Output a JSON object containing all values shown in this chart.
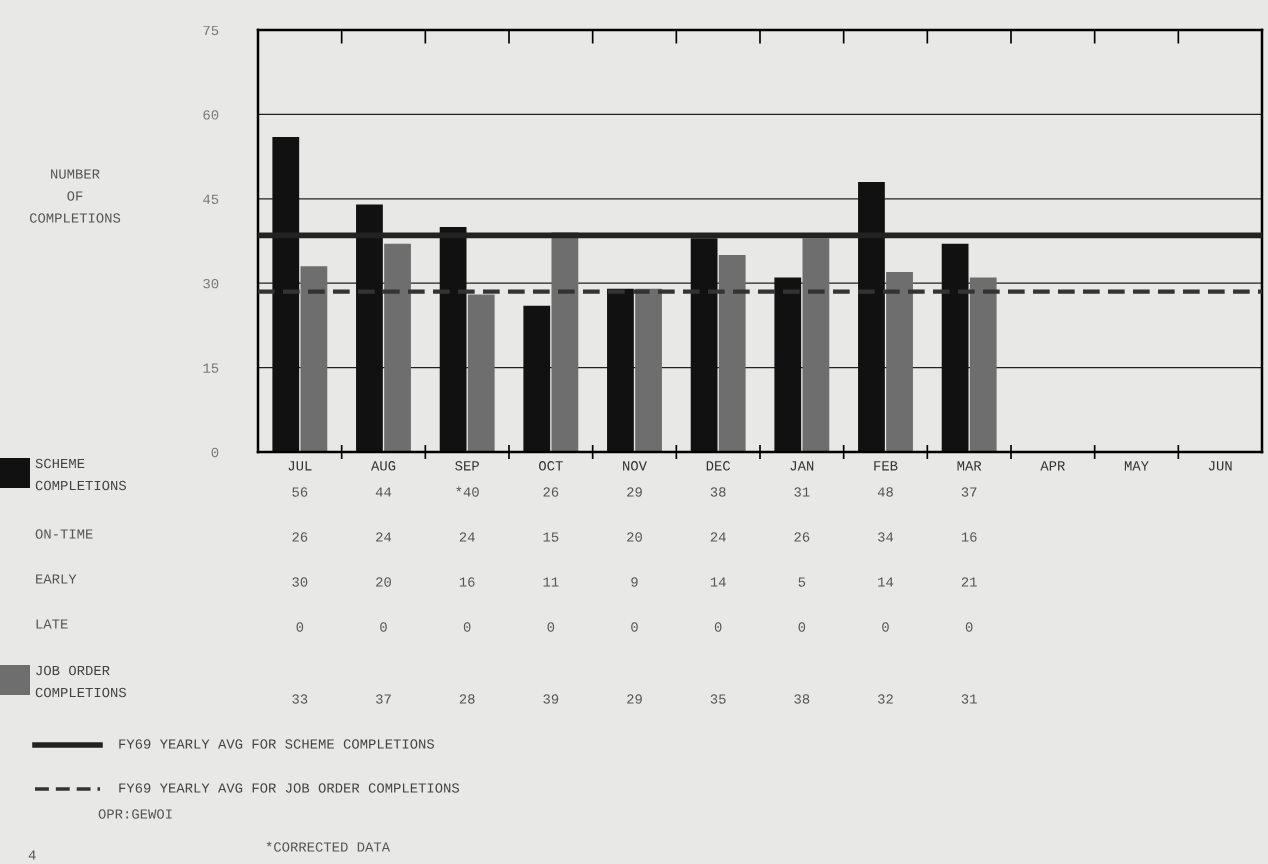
{
  "chart_data": {
    "type": "bar",
    "categories": [
      "JUL",
      "AUG",
      "SEP",
      "OCT",
      "NOV",
      "DEC",
      "JAN",
      "FEB",
      "MAR",
      "APR",
      "MAY",
      "JUN"
    ],
    "series": [
      {
        "name": "SCHEME\nCOMPLETIONS",
        "color": "#111111",
        "values": [
          56,
          44,
          40,
          26,
          29,
          38,
          31,
          48,
          37,
          null,
          null,
          null
        ],
        "value_labels": [
          "56",
          "44",
          "*40",
          "26",
          "29",
          "38",
          "31",
          "48",
          "37",
          null,
          null,
          null
        ]
      },
      {
        "name": "JOB ORDER\nCOMPLETIONS",
        "color": "#6e6e6e",
        "values": [
          33,
          37,
          28,
          39,
          29,
          35,
          38,
          32,
          31,
          null,
          null,
          null
        ],
        "value_labels": [
          "33",
          "37",
          "28",
          "39",
          "29",
          "35",
          "38",
          "32",
          "31",
          null,
          null,
          null
        ]
      }
    ],
    "ylim": [
      0,
      75
    ],
    "yticks": [
      0,
      15,
      30,
      45,
      60,
      75
    ],
    "grid": "y",
    "legend": "bottom left",
    "ref_lines": [
      {
        "axis": "y",
        "value": 38.5,
        "label": "FY69 YEARLY AVG FOR SCHEME COMPLETIONS",
        "color": "#222222",
        "line_style": "solid"
      },
      {
        "axis": "y",
        "value": 28.5,
        "label": "FY69 YEARLY AVG FOR JOB ORDER COMPLETIONS",
        "color": "#333333",
        "line_style": "dashed"
      }
    ],
    "annotations": [
      "NUMBER\nOF\nCOMPLETIONS",
      "ON-TIME",
      "26",
      "24",
      "24",
      "15",
      "20",
      "24",
      "26",
      "34",
      "16",
      "EARLY",
      "30",
      "20",
      "16",
      "11",
      "9",
      "14",
      "5",
      "14",
      "21",
      "LATE",
      "0",
      "0",
      "0",
      "0",
      "0",
      "0",
      "0",
      "0",
      "0",
      "OPR:GEWOI",
      "4",
      "*CORRECTED DATA"
    ]
  }
}
